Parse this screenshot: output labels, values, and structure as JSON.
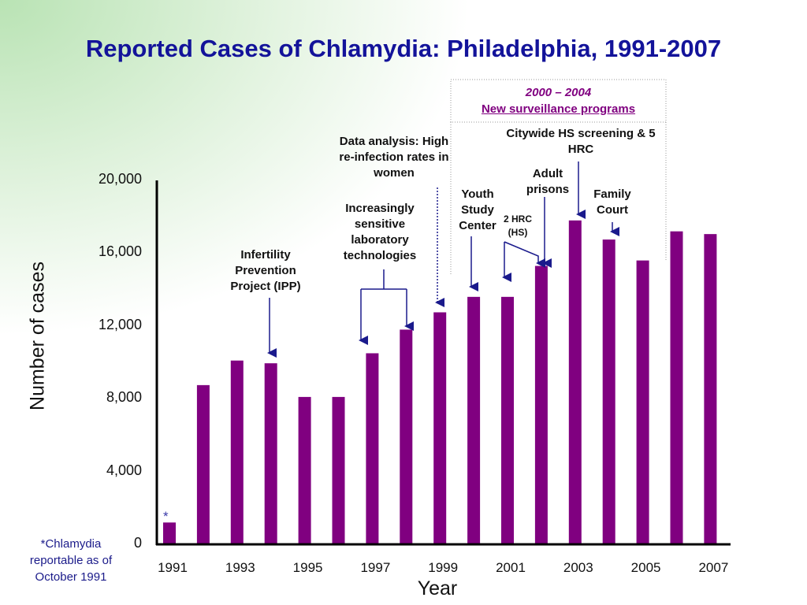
{
  "chart_data": {
    "type": "bar",
    "title": "Reported Cases of Chlamydia: Philadelphia, 1991-2007",
    "xlabel": "Year",
    "ylabel": "Number of cases",
    "ylim": [
      0,
      20000
    ],
    "yticks": [
      "0",
      "4,000",
      "8,000",
      "12,000",
      "16,000",
      "20,000"
    ],
    "xticks": [
      "1991",
      "1993",
      "1995",
      "1997",
      "1999",
      "2001",
      "2003",
      "2005",
      "2007"
    ],
    "categories": [
      "1991",
      "1992",
      "1993",
      "1994",
      "1995",
      "1996",
      "1997",
      "1998",
      "1999",
      "2000",
      "2001",
      "2002",
      "2003",
      "2004",
      "2005",
      "2006",
      "2007"
    ],
    "values": [
      1200,
      8750,
      10100,
      9950,
      8100,
      8100,
      10500,
      11800,
      12750,
      13600,
      13600,
      15300,
      17800,
      16750,
      15600,
      17200,
      17050
    ],
    "bar_color": "#800080",
    "bar_1991_marker": "*",
    "footnote": "*Chlamydia reportable as of October 1991",
    "annotations": {
      "ipp": "Infertility Prevention Project (IPP)",
      "lab": "Increasingly sensitive laboratory technologies",
      "data": "Data analysis: High re-infection rates in women",
      "box_years": "2000 – 2004",
      "box_title": "New surveillance programs",
      "youth": "Youth Study Center",
      "hrc2": "2 HRC (HS)",
      "adult": "Adult prisons",
      "citywide": "Citywide HS screening & 5 HRC",
      "family": "Family Court"
    }
  }
}
